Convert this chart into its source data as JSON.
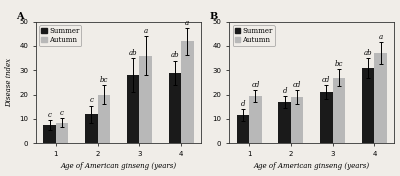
{
  "panel_A": {
    "title": "A",
    "summer_values": [
      7.5,
      12,
      28,
      29
    ],
    "autumn_values": [
      8.5,
      20,
      36,
      42
    ],
    "summer_errors": [
      2.0,
      3.5,
      7.0,
      5.0
    ],
    "autumn_errors": [
      2.0,
      4.0,
      8.0,
      5.5
    ],
    "summer_labels": [
      "c",
      "c",
      "ab",
      "ab"
    ],
    "autumn_labels": [
      "c",
      "bc",
      "a",
      "a"
    ],
    "ylim": [
      0,
      50
    ],
    "yticks": [
      0,
      10,
      20,
      30,
      40,
      50
    ],
    "ylabel": "Disease index",
    "xlabel": "Age of American ginseng (years)"
  },
  "panel_B": {
    "title": "B",
    "summer_values": [
      11.5,
      17,
      21,
      31
    ],
    "autumn_values": [
      19.5,
      19,
      27,
      37
    ],
    "summer_errors": [
      2.5,
      2.5,
      3.0,
      4.0
    ],
    "autumn_errors": [
      2.5,
      3.0,
      3.5,
      4.5
    ],
    "summer_labels": [
      "d",
      "d",
      "cd",
      "ab"
    ],
    "autumn_labels": [
      "cd",
      "cd",
      "bc",
      "a"
    ],
    "ylim": [
      0,
      50
    ],
    "yticks": [
      0,
      10,
      20,
      30,
      40,
      50
    ],
    "ylabel": "",
    "xlabel": "Age of American ginseng (years)"
  },
  "xtick_labels": [
    "1",
    "2",
    "3",
    "4"
  ],
  "bar_width": 0.3,
  "summer_color": "#1a1a1a",
  "autumn_color": "#b8b8b8",
  "legend_labels": [
    "Summer",
    "Autumn"
  ],
  "background_color": "#f0ede8",
  "label_fontsize": 5,
  "title_fontsize": 7,
  "axis_fontsize": 5,
  "tick_fontsize": 5,
  "legend_fontsize": 5
}
